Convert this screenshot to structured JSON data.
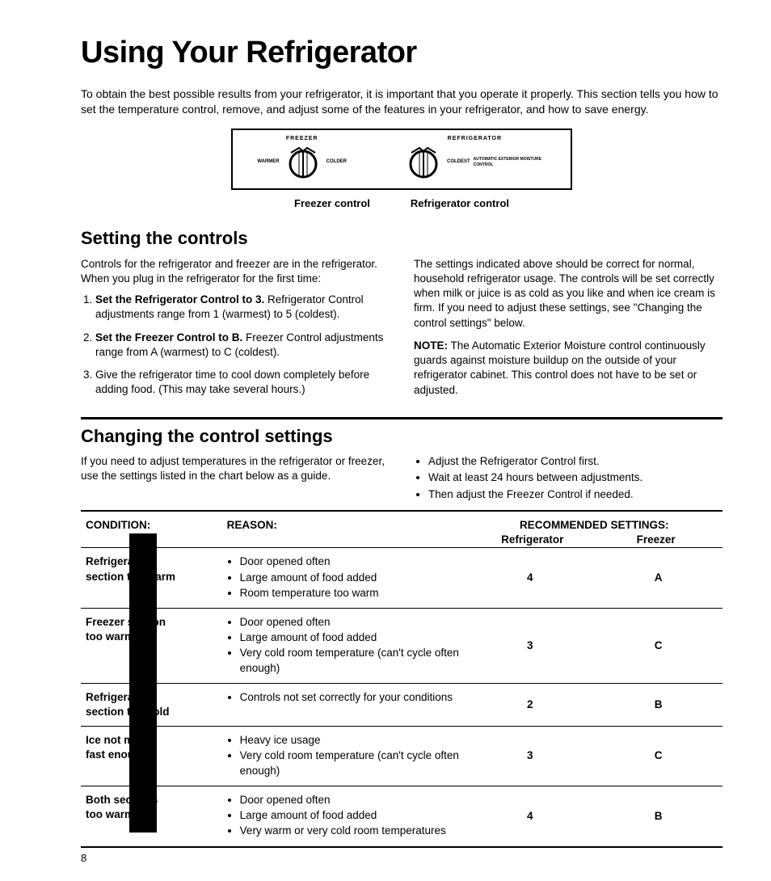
{
  "page_number": "8",
  "title": "Using Your Refrigerator",
  "intro": "To obtain the best possible results from your refrigerator, it is important that you operate it properly. This section tells you how to set the temperature control, remove, and adjust some of the features in your refrigerator, and how to save energy.",
  "diagram": {
    "freezer_label": "FREEZER",
    "refrigerator_label": "REFRIGERATOR",
    "warmer": "WARMER",
    "colder": "COLDER",
    "coldest": "COLDEST",
    "moisture": "AUTOMATIC EXTERIOR MOISTURE CONTROL",
    "freezer_caption": "Freezer control",
    "refrigerator_caption": "Refrigerator control"
  },
  "section1": {
    "heading": "Setting the controls",
    "left_intro": "Controls for the refrigerator and freezer are in the refrigerator. When you plug in the refrigerator for the first time:",
    "li1_bold": "Set the Refrigerator Control to 3.",
    "li1_rest": "Refrigerator Control adjustments range from 1 (warmest) to 5 (coldest).",
    "li2_bold": "Set the Freezer Control to B.",
    "li2_rest": "Freezer Control adjustments range from A (warmest) to C (coldest).",
    "li3": "Give the refrigerator time to cool down completely before adding food. (This may take several hours.)",
    "right_p1": "The settings indicated above should be correct for normal, household refrigerator usage. The controls will be set correctly when milk or juice is as cold as you like and when ice cream is firm. If you need to adjust these settings, see \"Changing the control settings\" below.",
    "note_bold": "NOTE:",
    "note_rest": " The Automatic Exterior Moisture control continuously guards against moisture buildup on the outside of your refrigerator cabinet. This control does not have to be set or adjusted."
  },
  "section2": {
    "heading": "Changing the control settings",
    "left_intro": "If you need to adjust temperatures in the refrigerator or freezer, use the settings listed in the chart below as a guide.",
    "tip1": "Adjust the Refrigerator Control first.",
    "tip2": "Wait at least 24 hours between adjustments.",
    "tip3": "Then adjust the Freezer Control if needed."
  },
  "table": {
    "h_condition": "CONDITION:",
    "h_reason": "REASON:",
    "h_recommended": "RECOMMENDED SETTINGS:",
    "h_refrigerator": "Refrigerator",
    "h_freezer": "Freezer",
    "rows": [
      {
        "cond_l1": "Refrigerator",
        "cond_l2": "section too warm",
        "reasons": [
          "Door opened often",
          "Large amount of food added",
          "Room temperature too warm"
        ],
        "ref": "4",
        "frz": "A"
      },
      {
        "cond_l1": "Freezer section",
        "cond_l2": "too warm",
        "reasons": [
          "Door opened often",
          "Large amount of food added",
          "Very cold room temperature (can't cycle often enough)"
        ],
        "ref": "3",
        "frz": "C"
      },
      {
        "cond_l1": "Refrigerator",
        "cond_l2": "section too cold",
        "reasons": [
          "Controls not set correctly for your conditions"
        ],
        "ref": "2",
        "frz": "B"
      },
      {
        "cond_l1": "Ice not made",
        "cond_l2": "fast enough",
        "reasons": [
          "Heavy ice usage",
          "Very cold room temperature (can't cycle often enough)"
        ],
        "ref": "3",
        "frz": "C"
      },
      {
        "cond_l1": "Both sections",
        "cond_l2": "too warm",
        "reasons": [
          "Door opened often",
          "Large amount of food added",
          "Very warm or very cold room temperatures"
        ],
        "ref": "4",
        "frz": "B"
      }
    ]
  }
}
